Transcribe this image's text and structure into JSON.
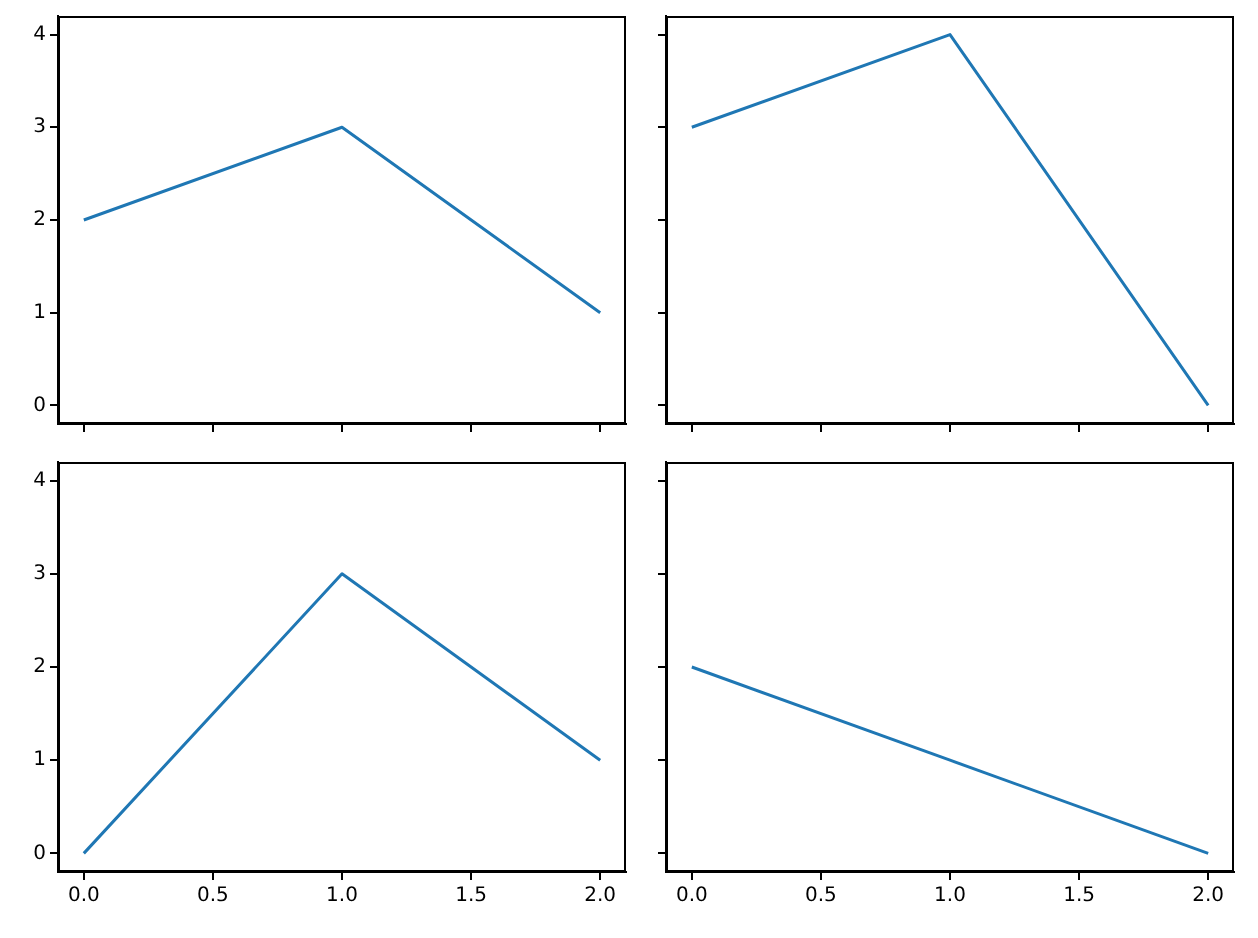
{
  "chart_data": [
    {
      "type": "line",
      "x": [
        0,
        1,
        2
      ],
      "series": [
        {
          "color": "#1f77b4",
          "values": [
            2,
            3,
            1
          ]
        }
      ],
      "xlim": [
        -0.1,
        2.1
      ],
      "ylim": [
        -0.2,
        4.2
      ],
      "xticks": [
        {
          "value": 0,
          "label": null
        },
        {
          "value": 0.5,
          "label": null
        },
        {
          "value": 1,
          "label": null
        },
        {
          "value": 1.5,
          "label": null
        },
        {
          "value": 2,
          "label": null
        }
      ],
      "yticks": [
        0,
        1,
        2,
        3,
        4
      ],
      "grid": false,
      "legend": false,
      "tick_labels": "y"
    },
    {
      "type": "line",
      "x": [
        0,
        1,
        2
      ],
      "series": [
        {
          "color": "#1f77b4",
          "values": [
            3,
            4,
            0
          ]
        }
      ],
      "xlim": [
        -0.1,
        2.1
      ],
      "ylim": [
        -0.2,
        4.2
      ],
      "xticks": [
        {
          "value": 0,
          "label": null
        },
        {
          "value": 0.5,
          "label": null
        },
        {
          "value": 1,
          "label": null
        },
        {
          "value": 1.5,
          "label": null
        },
        {
          "value": 2,
          "label": null
        }
      ],
      "yticks": [
        {
          "value": 0,
          "label": null
        },
        {
          "value": 1,
          "label": null
        },
        {
          "value": 2,
          "label": null
        },
        {
          "value": 3,
          "label": null
        },
        {
          "value": 4,
          "label": null
        }
      ],
      "grid": false,
      "legend": false,
      "tick_labels": false
    },
    {
      "type": "line",
      "x": [
        0,
        1,
        2
      ],
      "series": [
        {
          "color": "#1f77b4",
          "values": [
            0,
            3,
            1
          ]
        }
      ],
      "xlim": [
        -0.1,
        2.1
      ],
      "ylim": [
        -0.2,
        4.2
      ],
      "xticks": [
        {
          "value": 0,
          "label": "0.0"
        },
        {
          "value": 0.5,
          "label": "0.5"
        },
        {
          "value": 1,
          "label": "1.0"
        },
        {
          "value": 1.5,
          "label": "1.5"
        },
        {
          "value": 2,
          "label": "2.0"
        }
      ],
      "yticks": [
        0,
        1,
        2,
        3,
        4
      ],
      "grid": false,
      "legend": false
    },
    {
      "type": "line",
      "x": [
        0,
        1,
        2
      ],
      "series": [
        {
          "color": "#1f77b4",
          "values": [
            2,
            1,
            0
          ]
        }
      ],
      "xlim": [
        -0.1,
        2.1
      ],
      "ylim": [
        -0.2,
        4.2
      ],
      "xticks": [
        {
          "value": 0,
          "label": "0.0"
        },
        {
          "value": 0.5,
          "label": "0.5"
        },
        {
          "value": 1,
          "label": "1.0"
        },
        {
          "value": 1.5,
          "label": "1.5"
        },
        {
          "value": 2,
          "label": "2.0"
        }
      ],
      "yticks": [
        {
          "value": 0,
          "label": null
        },
        {
          "value": 1,
          "label": null
        },
        {
          "value": 2,
          "label": null
        },
        {
          "value": 3,
          "label": null
        },
        {
          "value": 4,
          "label": null
        }
      ],
      "grid": false,
      "legend": false,
      "tick_labels": "x"
    }
  ]
}
